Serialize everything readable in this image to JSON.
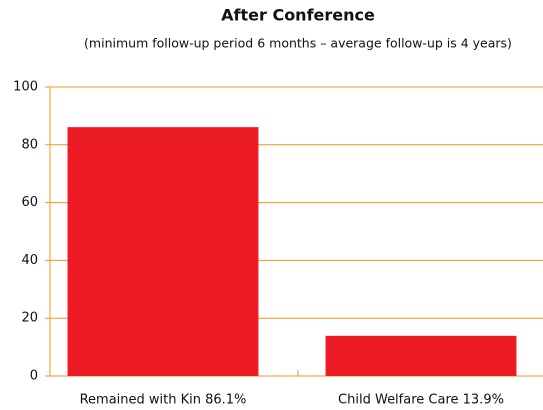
{
  "chart_data": {
    "type": "bar",
    "title": "After Conference",
    "subtitle": "(minimum follow-up period 6 months – average follow-up is 4 years)",
    "categories": [
      "Remained with Kin 86.1%",
      "Child Welfare Care 13.9%"
    ],
    "values": [
      86.1,
      13.9
    ],
    "color": "#ed1c24",
    "grid_color": "#f7941d",
    "ylim": [
      0,
      100
    ],
    "yticks": [
      0,
      20,
      40,
      60,
      80,
      100
    ],
    "grid": true
  }
}
